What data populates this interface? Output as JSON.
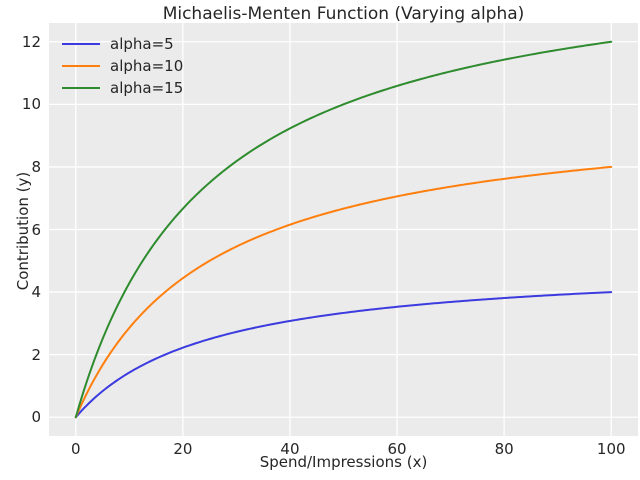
{
  "figure": {
    "title": "Michaelis-Menten Function (Varying alpha)",
    "background_color": "#ffffff",
    "axes_background_color": "#ebebeb",
    "grid_color": "#ffffff",
    "text_color": "#262626"
  },
  "chart_data": {
    "type": "line",
    "title": "Michaelis-Menten Function (Varying alpha)",
    "xlabel": "Spend/Impressions (x)",
    "ylabel": "Contribution (y)",
    "xlim": [
      -5,
      105
    ],
    "ylim": [
      -0.6,
      12.6
    ],
    "xticks": [
      0,
      20,
      40,
      60,
      80,
      100
    ],
    "yticks": [
      0,
      2,
      4,
      6,
      8,
      10,
      12
    ],
    "grid": true,
    "legend_position": "upper left",
    "function": "y = alpha * x / (K + x)",
    "K": 25,
    "x_range": [
      0,
      100
    ],
    "x_samples": [
      0,
      5,
      10,
      15,
      20,
      25,
      30,
      40,
      50,
      60,
      70,
      80,
      90,
      100
    ],
    "series": [
      {
        "name": "alpha=5",
        "alpha": 5,
        "color": "#3b3bdf",
        "y_samples": [
          0,
          0.833,
          1.429,
          1.875,
          2.222,
          2.5,
          2.727,
          3.077,
          3.333,
          3.529,
          3.684,
          3.81,
          3.913,
          4.0
        ]
      },
      {
        "name": "alpha=10",
        "alpha": 10,
        "color": "#ff7f0e",
        "y_samples": [
          0,
          1.667,
          2.857,
          3.75,
          4.444,
          5.0,
          5.455,
          6.154,
          6.667,
          7.059,
          7.368,
          7.619,
          7.826,
          8.0
        ]
      },
      {
        "name": "alpha=15",
        "alpha": 15,
        "color": "#2e8b2e",
        "y_samples": [
          0,
          2.5,
          4.286,
          5.625,
          6.667,
          7.5,
          8.182,
          9.231,
          10.0,
          10.588,
          11.053,
          11.429,
          11.739,
          12.0
        ]
      }
    ]
  }
}
